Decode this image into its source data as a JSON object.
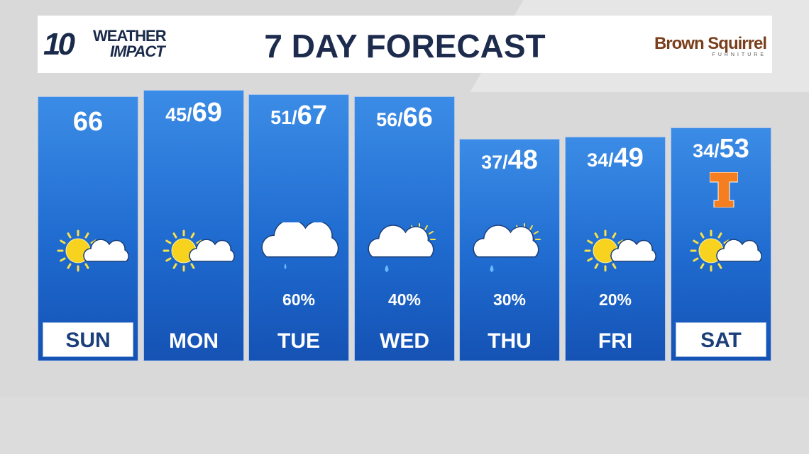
{
  "header": {
    "logo_number": "10",
    "logo_top": "WEATHER",
    "logo_bottom": "IMPACT",
    "title": "7 DAY FORECAST",
    "sponsor": "Brown Squirrel",
    "sponsor_sub": "FURNITURE"
  },
  "separator": "/",
  "days": [
    {
      "day": "SUN",
      "high": 66
    },
    {
      "day": "MON",
      "low": 45,
      "high": 69
    },
    {
      "day": "TUE",
      "low": 51,
      "high": 67,
      "rain": "60%"
    },
    {
      "day": "WED",
      "low": 56,
      "high": 66,
      "rain": "40%"
    },
    {
      "day": "THU",
      "low": 37,
      "high": 48,
      "rain": "30%"
    },
    {
      "day": "FRI",
      "low": 34,
      "high": 49,
      "rain": "20%"
    },
    {
      "day": "SAT",
      "low": 34,
      "high": 53
    }
  ]
}
